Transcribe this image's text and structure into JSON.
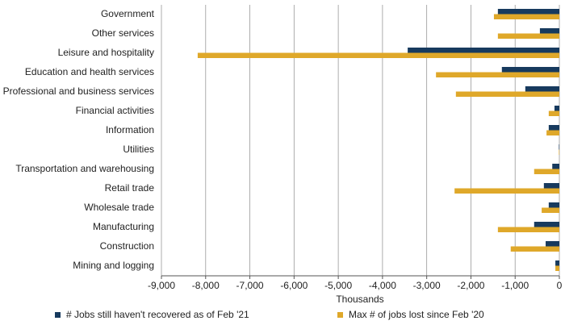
{
  "chart_data": {
    "type": "hbar",
    "categories": [
      "Government",
      "Other services",
      "Leisure and hospitality",
      "Education and health services",
      "Professional and business services",
      "Financial activities",
      "Information",
      "Utilities",
      "Transportation and warehousing",
      "Retail trade",
      "Wholesale trade",
      "Manufacturing",
      "Construction",
      "Mining and logging"
    ],
    "series": [
      {
        "name": "# Jobs still haven't recovered as of Feb '21",
        "color": "#173a5e",
        "values": [
          -1390,
          -440,
          -3430,
          -1300,
          -770,
          -110,
          -240,
          -10,
          -160,
          -350,
          -240,
          -570,
          -310,
          -90
        ]
      },
      {
        "name": "Max # of jobs lost since Feb '20",
        "color": "#dfa82a",
        "values": [
          -1480,
          -1390,
          -8180,
          -2790,
          -2340,
          -240,
          -290,
          -10,
          -570,
          -2370,
          -400,
          -1390,
          -1100,
          -90
        ]
      }
    ],
    "xlabel": "Thousands",
    "xlim": [
      -9000,
      0
    ],
    "xticks": [
      {
        "value": -9000,
        "label": "-9,000"
      },
      {
        "value": -8000,
        "label": "-8,000"
      },
      {
        "value": -7000,
        "label": "-7,000"
      },
      {
        "value": -6000,
        "label": "-6,000"
      },
      {
        "value": -5000,
        "label": "-5,000"
      },
      {
        "value": -4000,
        "label": "-4,000"
      },
      {
        "value": -3000,
        "label": "-3,000"
      },
      {
        "value": -2000,
        "label": "-2,000"
      },
      {
        "value": -1000,
        "label": "-1,000"
      },
      0
    ],
    "grid": true
  }
}
